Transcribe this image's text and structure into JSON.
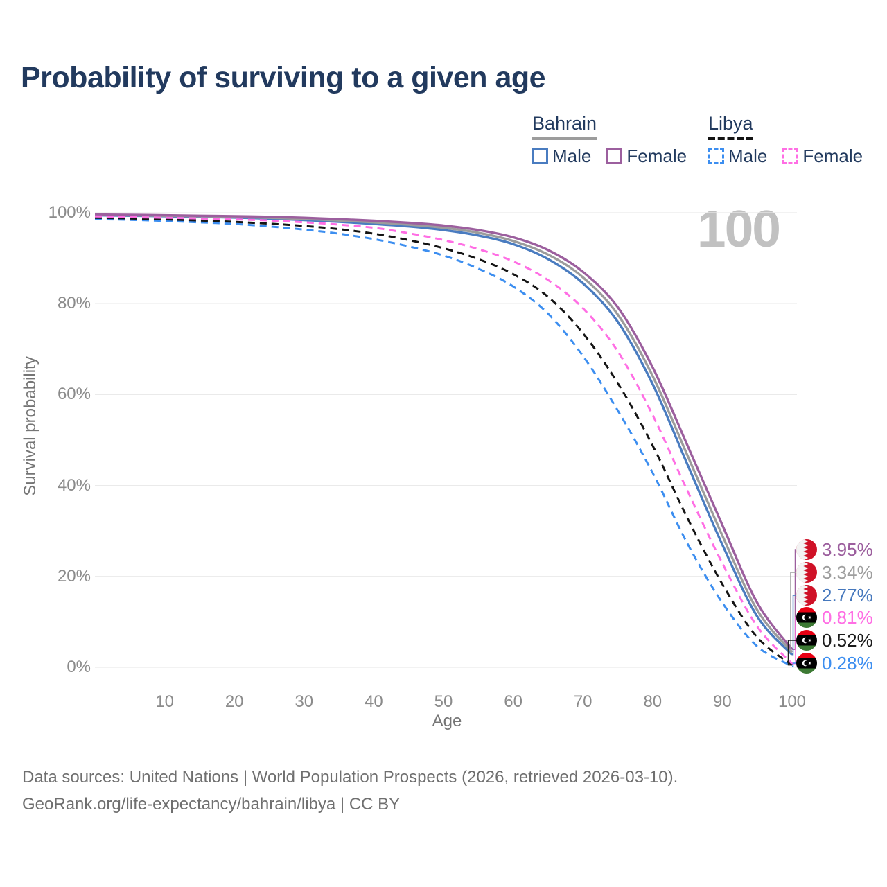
{
  "title": "Probability of surviving to a given age",
  "watermark_age": "100",
  "legend": {
    "groups": [
      {
        "country": "Bahrain",
        "line_style": "solid",
        "underline_color": "#9c9c9c",
        "items": [
          {
            "label": "Male",
            "color": "#4a7cc0"
          },
          {
            "label": "Female",
            "color": "#9c5f9e"
          }
        ]
      },
      {
        "country": "Libya",
        "line_style": "dashed",
        "underline_color": "#141414",
        "items": [
          {
            "label": "Male",
            "color": "#3c8ef0"
          },
          {
            "label": "Female",
            "color": "#ff6ee4"
          }
        ]
      }
    ]
  },
  "chart_data": {
    "type": "line",
    "title": "Probability of surviving to a given age",
    "xlabel": "Age",
    "ylabel": "Survival probability",
    "xlim": [
      0,
      100
    ],
    "ylim": [
      0,
      100
    ],
    "grid": "horizontal",
    "x_ticks": [
      10,
      20,
      30,
      40,
      50,
      60,
      70,
      80,
      90,
      100
    ],
    "y_ticks": [
      {
        "v": 0,
        "label": "0%"
      },
      {
        "v": 20,
        "label": "20%"
      },
      {
        "v": 40,
        "label": "40%"
      },
      {
        "v": 60,
        "label": "60%"
      },
      {
        "v": 80,
        "label": "80%"
      },
      {
        "v": 100,
        "label": "100%"
      }
    ],
    "ages": [
      0,
      5,
      10,
      15,
      20,
      25,
      30,
      35,
      40,
      45,
      50,
      55,
      60,
      65,
      70,
      75,
      80,
      85,
      90,
      95,
      100
    ],
    "series": [
      {
        "id": "bahrain-male",
        "name": "Bahrain Male",
        "color": "#4a7cc0",
        "dash": "solid",
        "width": 3.4,
        "values": [
          99.45,
          99.35,
          99.25,
          99.1,
          98.95,
          98.7,
          98.4,
          98.0,
          97.55,
          97.0,
          96.2,
          95.0,
          93.1,
          89.8,
          84.5,
          76.0,
          62.3,
          44.6,
          27.0,
          11.2,
          2.77
        ]
      },
      {
        "id": "bahrain-both",
        "name": "Bahrain Both sexes",
        "color": "#9c9c9c",
        "dash": "solid",
        "width": 3.4,
        "values": [
          99.5,
          99.45,
          99.35,
          99.25,
          99.1,
          98.9,
          98.65,
          98.3,
          97.9,
          97.4,
          96.7,
          95.6,
          93.8,
          90.8,
          85.8,
          77.6,
          64.1,
          46.6,
          29.0,
          12.6,
          3.34
        ]
      },
      {
        "id": "bahrain-female",
        "name": "Bahrain Female",
        "color": "#9c5f9e",
        "dash": "solid",
        "width": 3.4,
        "values": [
          99.6,
          99.55,
          99.45,
          99.35,
          99.25,
          99.1,
          98.9,
          98.6,
          98.25,
          97.8,
          97.2,
          96.2,
          94.6,
          91.8,
          87.0,
          79.2,
          66.0,
          48.8,
          31.3,
          14.2,
          3.95
        ]
      },
      {
        "id": "libya-male",
        "name": "Libya Male",
        "color": "#3c8ef0",
        "dash": "dashed",
        "width": 3,
        "values": [
          98.6,
          98.45,
          98.2,
          97.9,
          97.55,
          97.0,
          96.3,
          95.4,
          94.2,
          92.6,
          90.6,
          87.7,
          83.8,
          77.8,
          68.5,
          56.5,
          42.8,
          27.2,
          14.2,
          4.6,
          0.28
        ]
      },
      {
        "id": "libya-both",
        "name": "Libya Both sexes",
        "color": "#141414",
        "dash": "dashed",
        "width": 3,
        "values": [
          98.9,
          98.75,
          98.55,
          98.3,
          98.0,
          97.6,
          97.1,
          96.4,
          95.4,
          94.0,
          92.2,
          89.8,
          86.5,
          81.5,
          73.5,
          62.5,
          48.8,
          32.8,
          18.3,
          6.6,
          0.52
        ]
      },
      {
        "id": "libya-female",
        "name": "Libya Female",
        "color": "#ff6ee4",
        "dash": "dashed",
        "width": 3,
        "values": [
          99.2,
          99.05,
          98.9,
          98.75,
          98.55,
          98.3,
          97.9,
          97.4,
          96.7,
          95.5,
          94.0,
          92.0,
          89.3,
          85.2,
          79.0,
          69.5,
          55.5,
          38.8,
          22.9,
          9.0,
          0.81
        ]
      }
    ],
    "end_labels": [
      {
        "flag": "bahrain",
        "value": "3.95%",
        "end_value": 3.95,
        "color": "#9c5f9e",
        "series": "bahrain-female"
      },
      {
        "flag": "bahrain",
        "value": "3.34%",
        "end_value": 3.34,
        "color": "#9e9e9e",
        "series": "bahrain-both"
      },
      {
        "flag": "bahrain",
        "value": "2.77%",
        "end_value": 2.77,
        "color": "#4678bd",
        "series": "bahrain-male"
      },
      {
        "flag": "libya",
        "value": "0.81%",
        "end_value": 0.81,
        "color": "#ff6ee4",
        "series": "libya-female"
      },
      {
        "flag": "libya",
        "value": "0.52%",
        "end_value": 0.52,
        "color": "#1b1b1b",
        "series": "libya-both"
      },
      {
        "flag": "libya",
        "value": "0.28%",
        "end_value": 0.28,
        "color": "#3c8ef0",
        "series": "libya-male"
      }
    ]
  },
  "footer": {
    "line1": "Data sources: United Nations | World Population Prospects (2026, retrieved 2026-03-10).",
    "line2": "GeoRank.org/life-expectancy/bahrain/libya | CC BY"
  }
}
